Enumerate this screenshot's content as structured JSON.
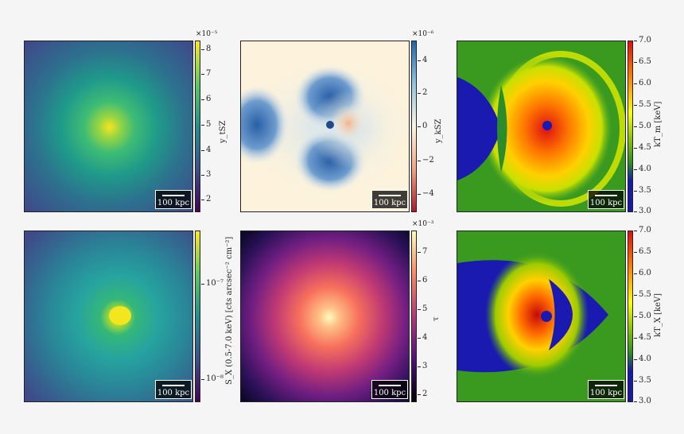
{
  "scale_bar_label": "100 kpc",
  "panels": {
    "ysz": {
      "exponent": "×10⁻⁵",
      "ticks": [
        "8",
        "7",
        "6",
        "5",
        "4",
        "3",
        "2"
      ],
      "label": "y_tSZ"
    },
    "ykz": {
      "exponent": "×10⁻⁶",
      "ticks": [
        "4",
        "2",
        "0",
        "−2",
        "−4"
      ],
      "label": "y_kSZ"
    },
    "ktm": {
      "ticks": [
        "7.0",
        "6.5",
        "6.0",
        "5.5",
        "5.0",
        "4.5",
        "4.0",
        "3.5",
        "3.0"
      ],
      "label": "kT_m [keV]"
    },
    "sx": {
      "ticks": [
        "10⁻⁷",
        "10⁻⁸"
      ],
      "label": "S_X (0.5-7.0 keV) [cts arcsec⁻² cm⁻²]"
    },
    "tau": {
      "exponent": "×10⁻³",
      "ticks": [
        "7",
        "6",
        "5",
        "4",
        "3",
        "2"
      ],
      "label": "τ"
    },
    "ktx": {
      "ticks": [
        "7.0",
        "6.5",
        "6.0",
        "5.5",
        "5.0",
        "4.5",
        "4.0",
        "3.5",
        "3.0"
      ],
      "label": "kT_X [keV]"
    }
  },
  "colors": {
    "viridis": [
      "#440154",
      "#3b528b",
      "#21918c",
      "#5ec962",
      "#fde725"
    ],
    "rdbu": [
      "#b2182b",
      "#f4a582",
      "#fdf6e3",
      "#92c5de",
      "#2166ac"
    ],
    "magma": [
      "#000004",
      "#51127c",
      "#b73779",
      "#fc8961",
      "#fcfdbf"
    ],
    "temperature": [
      "#1a1aa8",
      "#2a8c2a",
      "#9ccc00",
      "#ffff00",
      "#ff8800",
      "#e01010"
    ]
  }
}
